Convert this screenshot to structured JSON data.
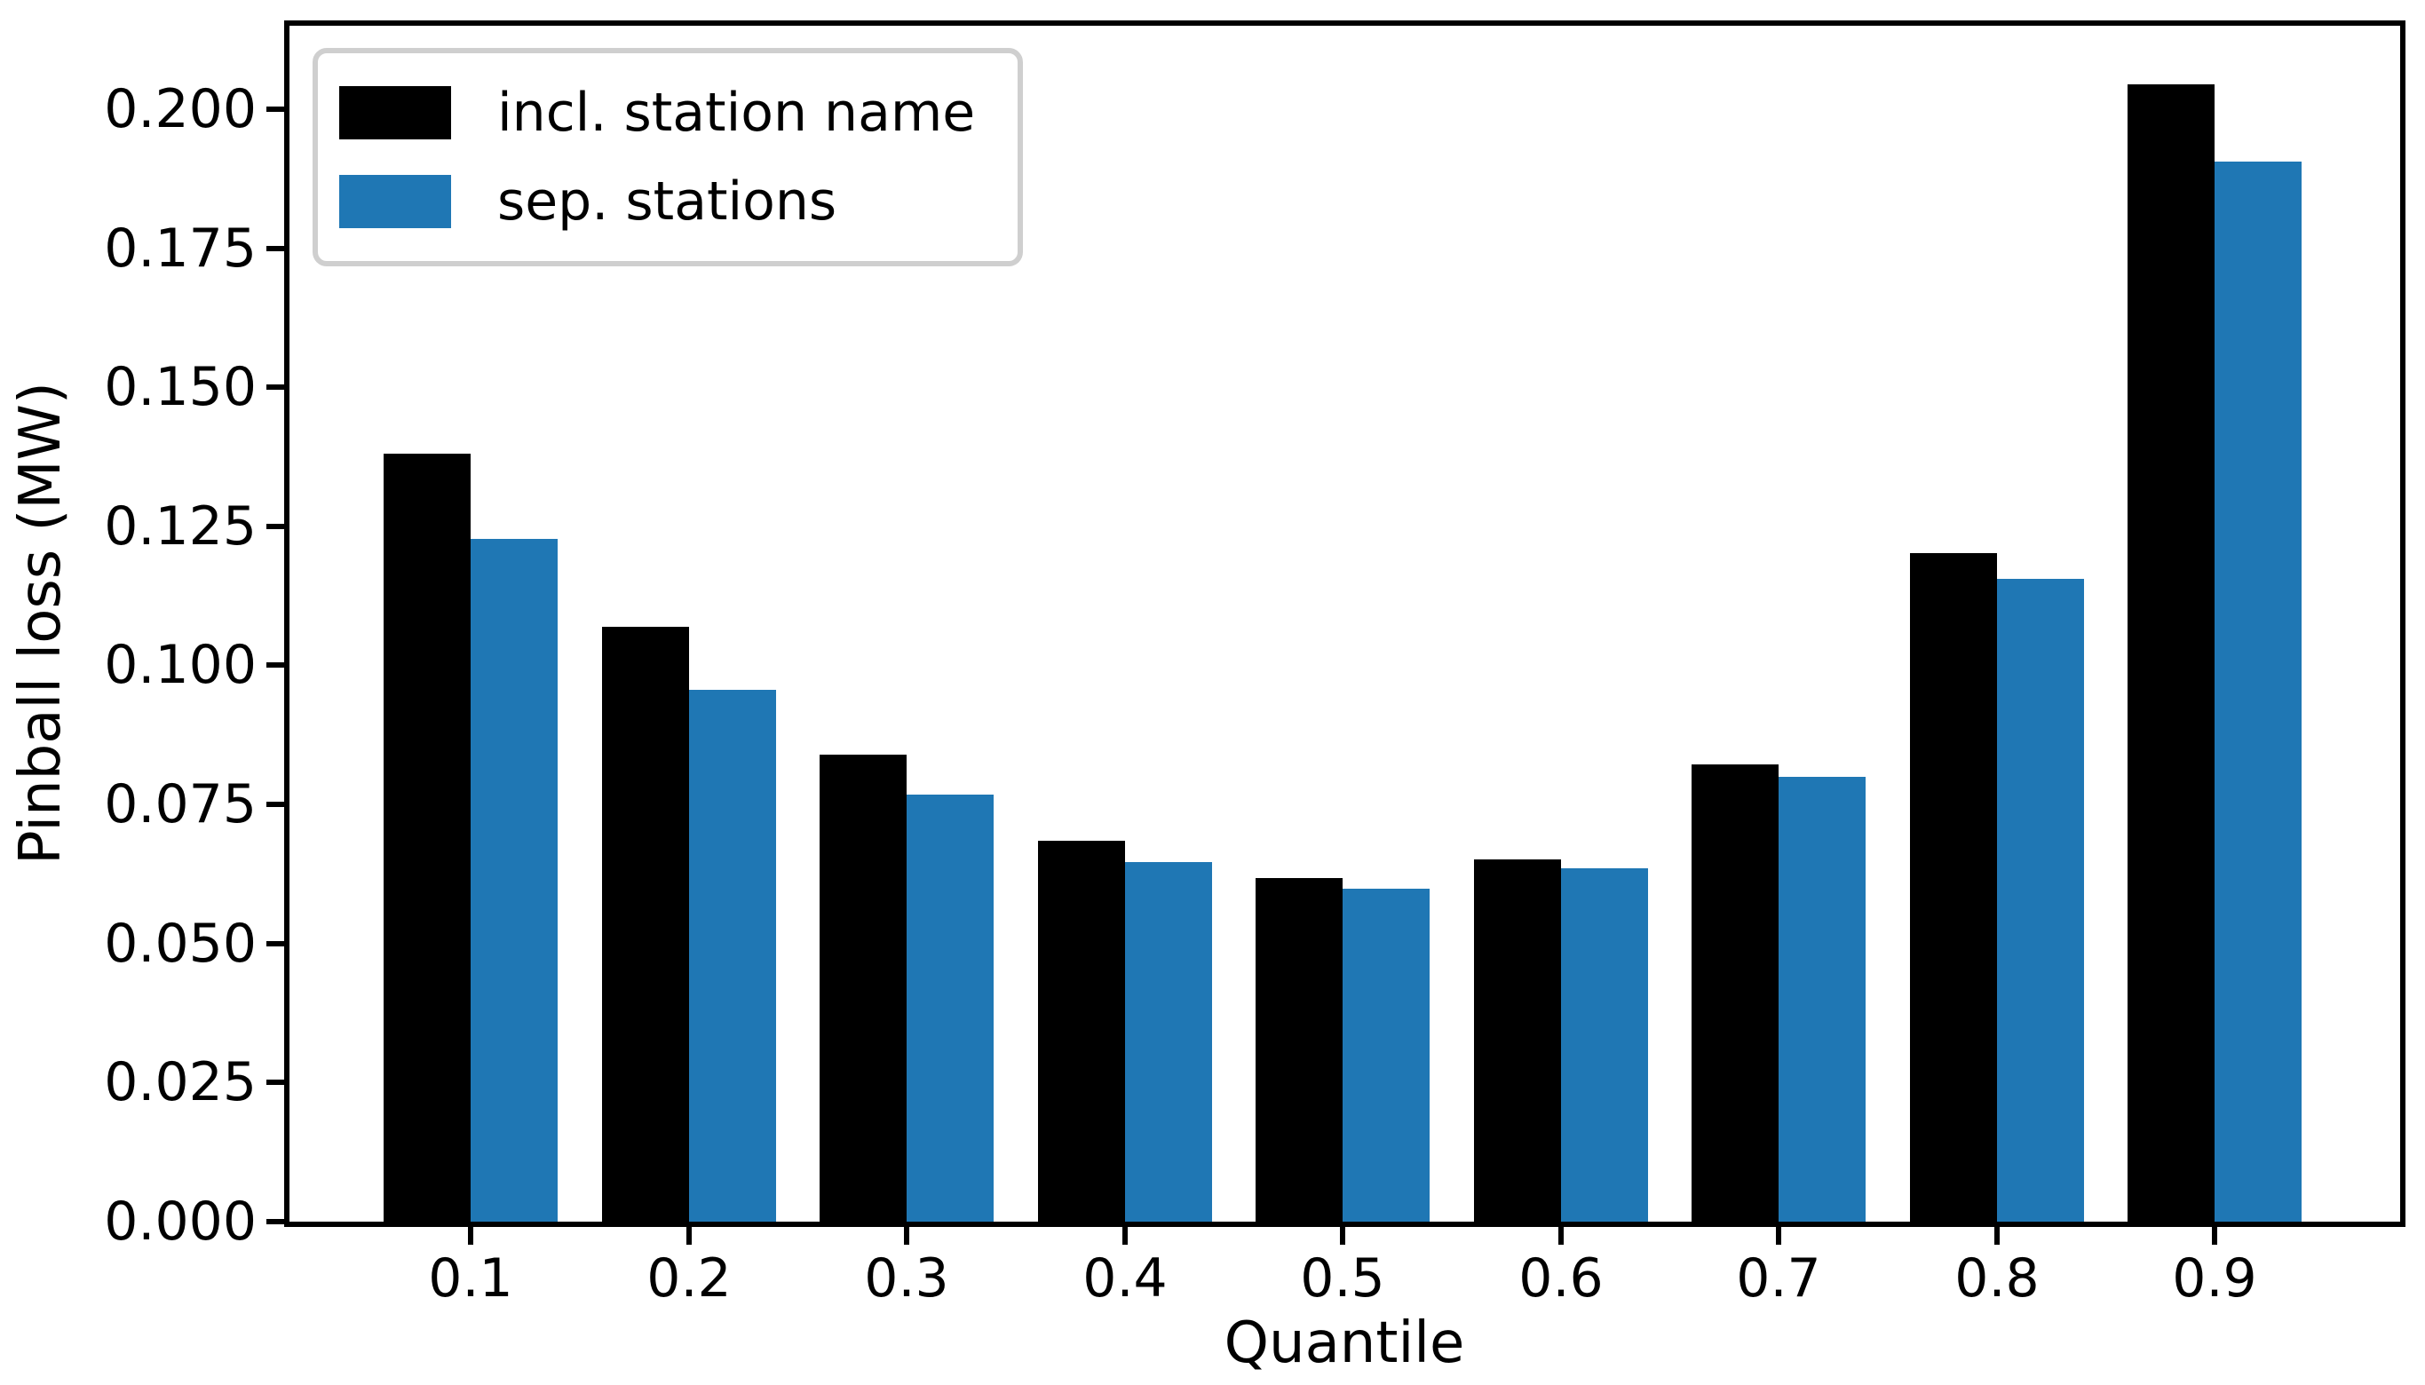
{
  "chart_data": {
    "type": "bar",
    "title": "",
    "xlabel": "Quantile",
    "ylabel": "Pinball loss (MW)",
    "categories": [
      "0.1",
      "0.2",
      "0.3",
      "0.4",
      "0.5",
      "0.6",
      "0.7",
      "0.8",
      "0.9"
    ],
    "series": [
      {
        "name": "incl. station name",
        "color": "#000000",
        "values": [
          0.138,
          0.107,
          0.084,
          0.0685,
          0.0617,
          0.0652,
          0.0822,
          0.1202,
          0.2045
        ]
      },
      {
        "name": "sep. stations",
        "color": "#1f77b4",
        "values": [
          0.1227,
          0.0956,
          0.0767,
          0.0646,
          0.0598,
          0.0635,
          0.0799,
          0.1155,
          0.1905
        ]
      }
    ],
    "ylim": [
      0,
      0.215
    ],
    "y_ticks": [
      0,
      0.025,
      0.05,
      0.075,
      0.1,
      0.125,
      0.15,
      0.175,
      0.2
    ],
    "y_tick_labels": [
      "0.000",
      "0.025",
      "0.050",
      "0.075",
      "0.100",
      "0.125",
      "0.150",
      "0.175",
      "0.200"
    ],
    "grid": false,
    "legend_position": "upper left",
    "legend_border_color": "#cfcfcf"
  }
}
